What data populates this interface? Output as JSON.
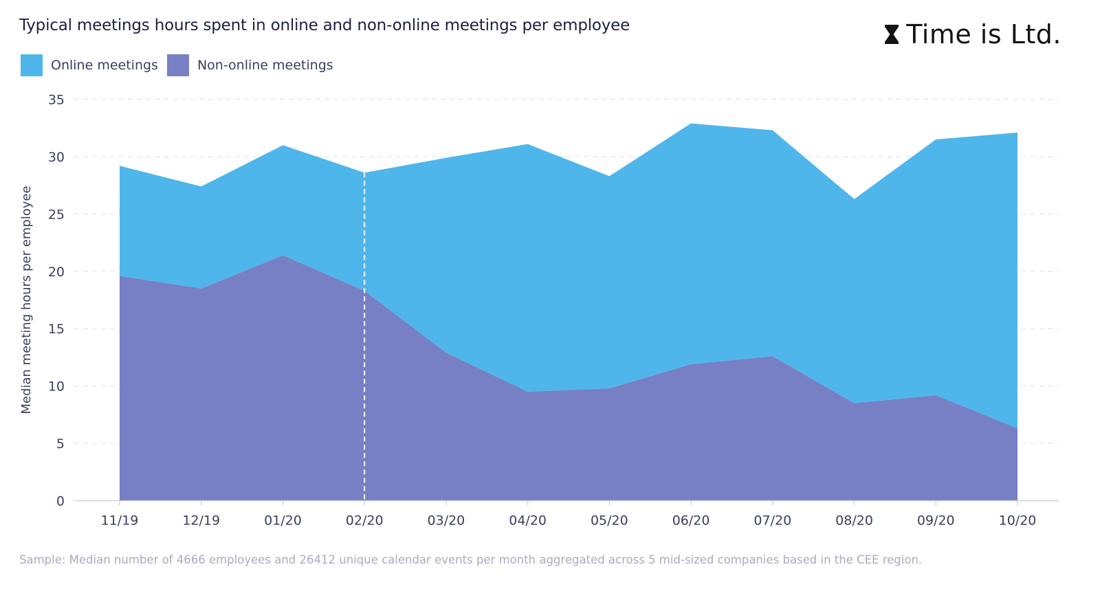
{
  "header": {
    "title": "Typical meetings hours spent in online and non-online meetings per employee",
    "brand": "Time is Ltd.",
    "brand_icon": "hourglass-icon"
  },
  "legend": {
    "items": [
      {
        "label": "Online meetings",
        "color": "#4fb6eb"
      },
      {
        "label": "Non-online meetings",
        "color": "#7780c4"
      }
    ]
  },
  "footnote": "Sample: Median number of 4666 employees and 26412 unique calendar events per month aggregated across 5 mid-sized companies based in the CEE region.",
  "chart_data": {
    "type": "area",
    "stacked": true,
    "title": "Typical meetings hours spent in online and non-online meetings per employee",
    "xlabel": "",
    "ylabel": "Median meeting hours per employee",
    "categories": [
      "11/19",
      "12/19",
      "01/20",
      "02/20",
      "03/20",
      "04/20",
      "05/20",
      "06/20",
      "07/20",
      "08/20",
      "09/20",
      "10/20"
    ],
    "series": [
      {
        "name": "Non-online meetings",
        "color": "#7780c4",
        "values": [
          19.6,
          18.5,
          21.4,
          18.3,
          12.9,
          9.5,
          9.8,
          11.9,
          12.6,
          8.5,
          9.2,
          6.3
        ]
      },
      {
        "name": "Online meetings",
        "color": "#4fb6eb",
        "values": [
          9.6,
          8.9,
          9.6,
          10.3,
          17.0,
          21.6,
          18.5,
          21.0,
          19.7,
          17.8,
          22.3,
          25.8
        ]
      }
    ],
    "ylim": [
      0,
      35
    ],
    "yticks": [
      0,
      5,
      10,
      15,
      20,
      25,
      30,
      35
    ],
    "grid": true,
    "legend_position": "top-left",
    "annotations": [
      {
        "type": "vertical-dashed-line",
        "x": "02/20",
        "color": "#ffffff"
      }
    ]
  }
}
